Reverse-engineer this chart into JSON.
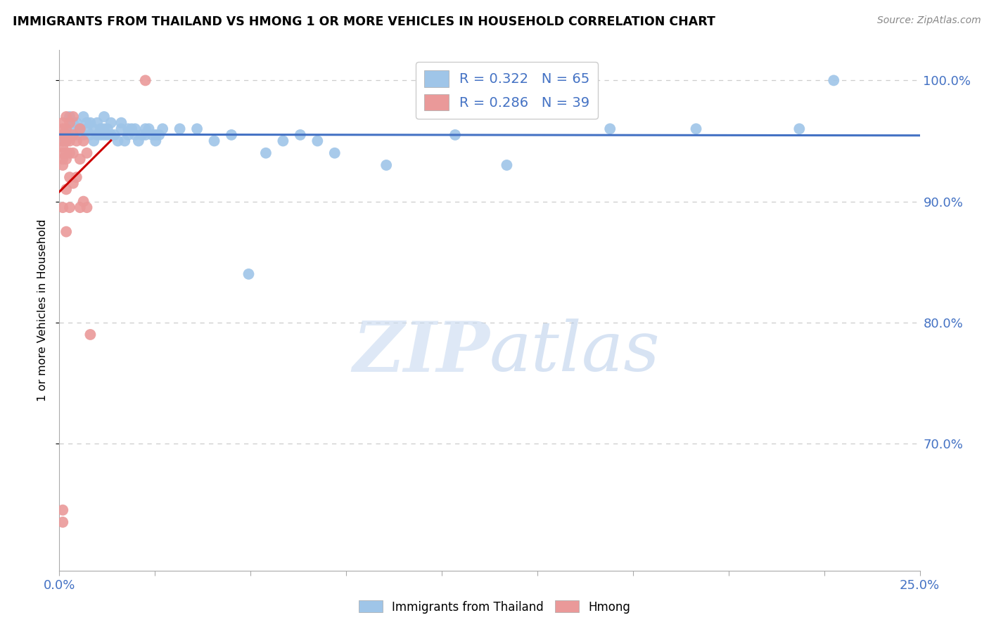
{
  "title": "IMMIGRANTS FROM THAILAND VS HMONG 1 OR MORE VEHICLES IN HOUSEHOLD CORRELATION CHART",
  "source": "Source: ZipAtlas.com",
  "ylabel": "1 or more Vehicles in Household",
  "xmin": 0.0,
  "xmax": 0.25,
  "ymin": 0.595,
  "ymax": 1.025,
  "yticks": [
    0.7,
    0.8,
    0.9,
    1.0
  ],
  "ytick_labels": [
    "70.0%",
    "80.0%",
    "90.0%",
    "100.0%"
  ],
  "legend_R_blue": "R = 0.322",
  "legend_N_blue": "N = 65",
  "legend_R_pink": "R = 0.286",
  "legend_N_pink": "N = 39",
  "blue_color": "#9fc5e8",
  "pink_color": "#ea9999",
  "trendline_blue": "#4472c4",
  "trendline_pink": "#cc0000",
  "watermark_zip": "ZIP",
  "watermark_atlas": "atlas",
  "thailand_x": [
    0.001,
    0.002,
    0.003,
    0.003,
    0.004,
    0.005,
    0.005,
    0.006,
    0.006,
    0.007,
    0.007,
    0.008,
    0.008,
    0.009,
    0.009,
    0.01,
    0.01,
    0.011,
    0.011,
    0.012,
    0.012,
    0.013,
    0.013,
    0.013,
    0.014,
    0.014,
    0.015,
    0.015,
    0.016,
    0.017,
    0.018,
    0.018,
    0.019,
    0.02,
    0.02,
    0.021,
    0.022,
    0.022,
    0.023,
    0.024,
    0.025,
    0.025,
    0.026,
    0.027,
    0.028,
    0.028,
    0.029,
    0.03,
    0.035,
    0.04,
    0.045,
    0.05,
    0.055,
    0.06,
    0.065,
    0.07,
    0.075,
    0.08,
    0.095,
    0.115,
    0.13,
    0.16,
    0.185,
    0.215,
    0.225
  ],
  "thailand_y": [
    0.95,
    0.95,
    0.96,
    0.97,
    0.965,
    0.955,
    0.965,
    0.96,
    0.96,
    0.97,
    0.955,
    0.96,
    0.965,
    0.955,
    0.965,
    0.95,
    0.96,
    0.955,
    0.965,
    0.955,
    0.96,
    0.955,
    0.96,
    0.97,
    0.955,
    0.96,
    0.955,
    0.965,
    0.955,
    0.95,
    0.96,
    0.965,
    0.95,
    0.955,
    0.96,
    0.96,
    0.955,
    0.96,
    0.95,
    0.955,
    0.955,
    0.96,
    0.96,
    0.955,
    0.95,
    0.955,
    0.955,
    0.96,
    0.96,
    0.96,
    0.95,
    0.955,
    0.84,
    0.94,
    0.95,
    0.955,
    0.95,
    0.94,
    0.93,
    0.955,
    0.93,
    0.96,
    0.96,
    0.96,
    1.0
  ],
  "hmong_x": [
    0.001,
    0.001,
    0.001,
    0.001,
    0.001,
    0.001,
    0.001,
    0.001,
    0.001,
    0.001,
    0.001,
    0.002,
    0.002,
    0.002,
    0.002,
    0.002,
    0.002,
    0.002,
    0.002,
    0.003,
    0.003,
    0.003,
    0.003,
    0.003,
    0.004,
    0.004,
    0.004,
    0.004,
    0.005,
    0.005,
    0.006,
    0.006,
    0.006,
    0.007,
    0.007,
    0.008,
    0.008,
    0.009,
    0.025
  ],
  "hmong_y": [
    0.635,
    0.645,
    0.895,
    0.93,
    0.935,
    0.94,
    0.945,
    0.95,
    0.955,
    0.96,
    0.965,
    0.875,
    0.91,
    0.935,
    0.94,
    0.95,
    0.955,
    0.96,
    0.97,
    0.895,
    0.92,
    0.94,
    0.95,
    0.965,
    0.915,
    0.94,
    0.955,
    0.97,
    0.92,
    0.95,
    0.895,
    0.935,
    0.96,
    0.9,
    0.95,
    0.895,
    0.94,
    0.79,
    1.0
  ],
  "axis_color": "#4472c4",
  "grid_color": "#cccccc",
  "spine_color": "#aaaaaa"
}
